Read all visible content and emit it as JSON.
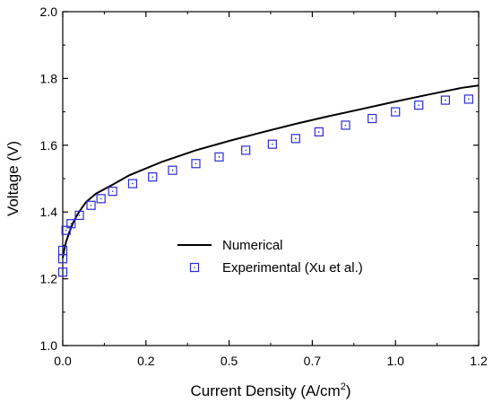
{
  "chart_data": {
    "type": "line",
    "xlabel": "Current Density (A/cm",
    "xlabel_sup": "2",
    "xlabel_end": ")",
    "ylabel": "Voltage (V)",
    "xlim": [
      0,
      1.25
    ],
    "ylim": [
      1.0,
      2.0
    ],
    "x_ticks": [
      0.0,
      0.25,
      0.5,
      0.75,
      1.0,
      1.25
    ],
    "x_tick_labels": [
      "0.0",
      "0.2",
      "0.5",
      "0.7",
      "1.0",
      "1.2"
    ],
    "y_ticks": [
      1.0,
      1.2,
      1.4,
      1.6,
      1.8,
      2.0
    ],
    "y_tick_labels": [
      "1.0",
      "1.2",
      "1.4",
      "1.6",
      "1.8",
      "2.0"
    ],
    "grid": false,
    "legend_position": "center",
    "series": [
      {
        "name": "Numerical",
        "kind": "line",
        "color": "#000000",
        "x": [
          0.0,
          0.005,
          0.01,
          0.02,
          0.03,
          0.04,
          0.05,
          0.07,
          0.1,
          0.15,
          0.2,
          0.3,
          0.4,
          0.5,
          0.6,
          0.7,
          0.8,
          0.9,
          1.0,
          1.1,
          1.2,
          1.25
        ],
        "y": [
          1.262,
          1.29,
          1.31,
          1.34,
          1.365,
          1.385,
          1.402,
          1.43,
          1.455,
          1.482,
          1.51,
          1.551,
          1.585,
          1.613,
          1.639,
          1.664,
          1.687,
          1.709,
          1.731,
          1.752,
          1.772,
          1.779
        ]
      },
      {
        "name": "Experimental (Xu et al.)",
        "kind": "scatter",
        "marker": "square",
        "color": "#2b2bd6",
        "x": [
          0.0,
          0.0,
          0.0,
          0.01,
          0.025,
          0.05,
          0.085,
          0.115,
          0.15,
          0.21,
          0.27,
          0.33,
          0.4,
          0.47,
          0.55,
          0.63,
          0.7,
          0.77,
          0.85,
          0.93,
          1.0,
          1.07,
          1.15,
          1.22
        ],
        "y": [
          1.22,
          1.26,
          1.285,
          1.345,
          1.365,
          1.39,
          1.42,
          1.44,
          1.462,
          1.485,
          1.505,
          1.525,
          1.545,
          1.565,
          1.585,
          1.603,
          1.62,
          1.64,
          1.66,
          1.68,
          1.7,
          1.72,
          1.735,
          1.738
        ]
      }
    ]
  }
}
